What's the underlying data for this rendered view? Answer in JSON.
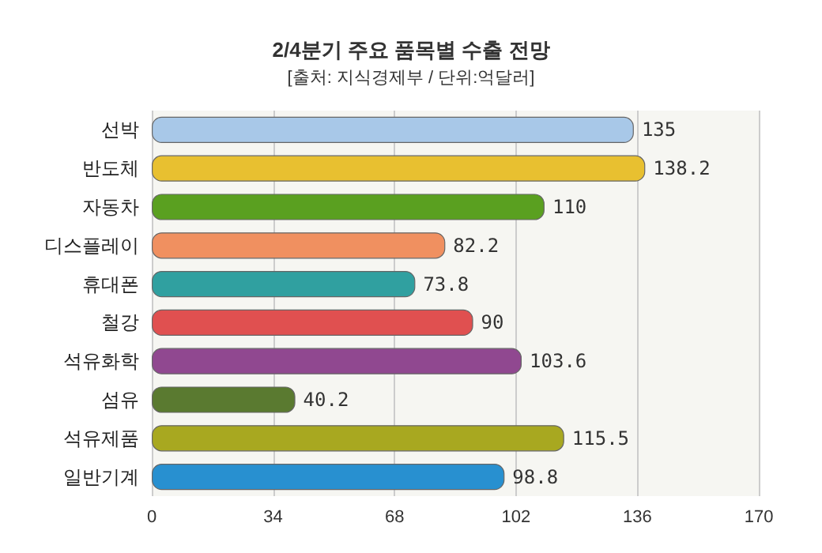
{
  "chart_data": {
    "type": "bar",
    "orientation": "horizontal",
    "title": "2/4분기 주요 품목별 수출 전망",
    "subtitle": "[출처: 지식경제부 / 단위:억달러]",
    "categories": [
      "선박",
      "반도체",
      "자동차",
      "디스플레이",
      "휴대폰",
      "철강",
      "석유화학",
      "섬유",
      "석유제품",
      "일반기계"
    ],
    "values": [
      135,
      138.2,
      110,
      82.2,
      73.8,
      90,
      103.6,
      40.2,
      115.5,
      98.8
    ],
    "colors": [
      "#a8c8e8",
      "#e8c030",
      "#5aa020",
      "#f09060",
      "#30a0a0",
      "#e05050",
      "#904890",
      "#5a7a30",
      "#a8a820",
      "#2890d0"
    ],
    "xlim": [
      0,
      170
    ],
    "xticks": [
      0,
      34,
      68,
      102,
      136,
      170
    ],
    "grid": "x",
    "data_labels": true
  }
}
